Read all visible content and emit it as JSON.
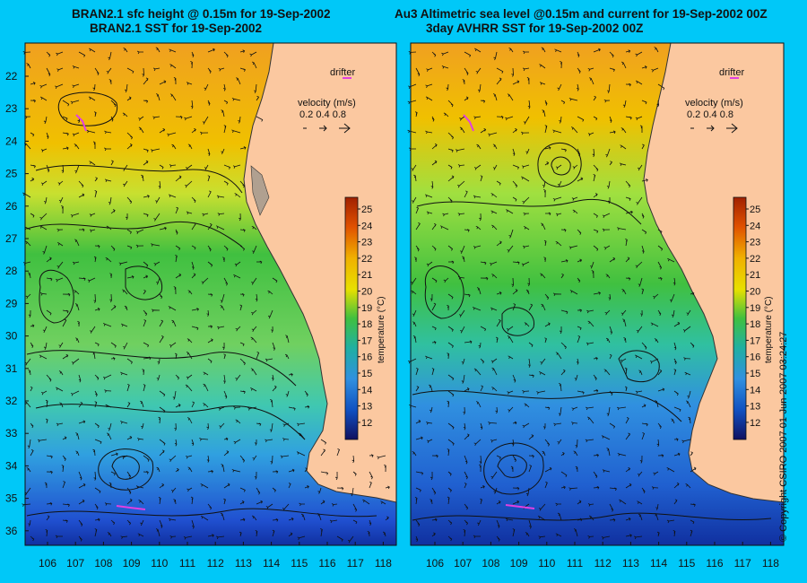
{
  "left_panel": {
    "title_line1": "BRAN2.1 sfc height @ 0.15m for 19-Sep-2002",
    "title_line2": "BRAN2.1 SST for 19-Sep-2002",
    "drifter_label": "drifter",
    "velocity_label": "velocity (m/s)",
    "velocity_values": "0.2 0.4 0.8",
    "colorbar_label": "temperature (°C)"
  },
  "right_panel": {
    "title_line1": "Au3 Altimetric sea level  @0.15m and current for 19-Sep-2002 00Z",
    "title_line2": "3day AVHRR SST for 19-Sep-2002 00Z",
    "drifter_label": "drifter",
    "velocity_label": "velocity (m/s)",
    "velocity_values": "0.2 0.4 0.8",
    "colorbar_label": "temperature (°C)"
  },
  "lat_ticks": [
    "22",
    "23",
    "24",
    "25",
    "26",
    "27",
    "28",
    "29",
    "30",
    "31",
    "32",
    "33",
    "34",
    "35",
    "36"
  ],
  "lon_ticks": [
    "106",
    "107",
    "108",
    "109",
    "110",
    "111",
    "112",
    "113",
    "114",
    "115",
    "116",
    "117",
    "118"
  ],
  "colorbar_ticks": [
    "25",
    "24",
    "23",
    "22",
    "21",
    "20",
    "19",
    "18",
    "17",
    "16",
    "15",
    "14",
    "13",
    "12"
  ],
  "colors": {
    "background": "#00c8f8",
    "land": "#fbc8a0",
    "drifter": "#e040e0"
  },
  "copyright": "© Copyright CSIRO 2007   01-Jun-2007 03:24:27"
}
